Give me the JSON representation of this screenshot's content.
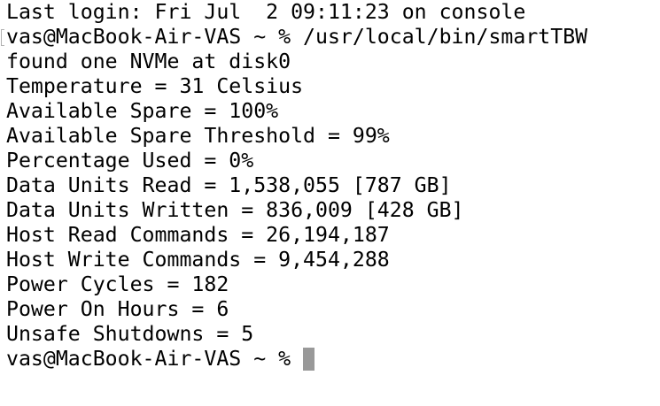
{
  "terminal": {
    "lines": [
      "Last login: Fri Jul  2 09:11:23 on console",
      "vas@MacBook-Air-VAS ~ % /usr/local/bin/smartTBW",
      "found one NVMe at disk0",
      "Temperature = 31 Celsius",
      "Available Spare = 100%",
      "Available Spare Threshold = 99%",
      "Percentage Used = 0%",
      "Data Units Read = 1,538,055 [787 GB]",
      "Data Units Written = 836,009 [428 GB]",
      "Host Read Commands = 26,194,187",
      "Host Write Commands = 9,454,288",
      "Power Cycles = 182",
      "Power On Hours = 6",
      "Unsafe Shutdowns = 5"
    ],
    "prompt": "vas@MacBook-Air-VAS ~ % "
  }
}
